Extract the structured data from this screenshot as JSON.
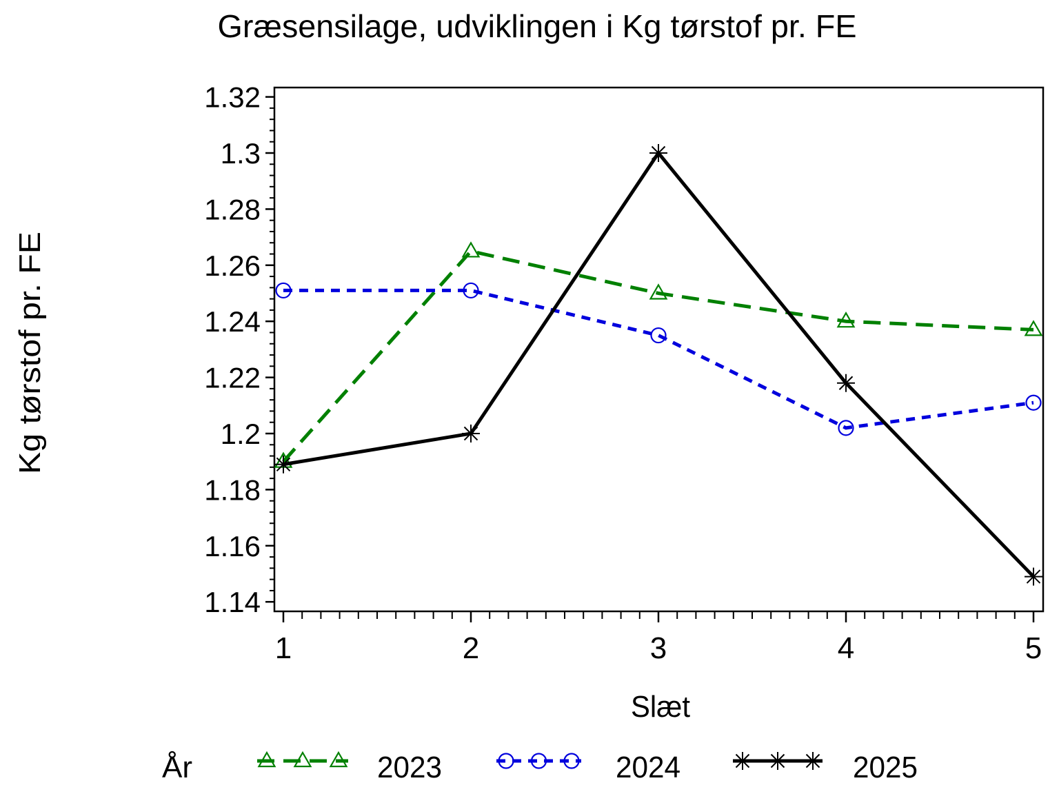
{
  "title": "Græsensilage, udviklingen i Kg tørstof pr. FE",
  "background_color": "#ffffff",
  "chart_data": {
    "type": "line",
    "title": "Græsensilage, udviklingen i Kg tørstof pr. FE",
    "xlabel": "Slæt",
    "ylabel": "Kg tørstof pr. FE",
    "x": [
      1,
      2,
      3,
      4,
      5
    ],
    "xtick_labels": [
      "1",
      "2",
      "3",
      "4",
      "5"
    ],
    "xlim": [
      1,
      5
    ],
    "ylim": [
      1.14,
      1.32
    ],
    "yticks": [
      1.14,
      1.16,
      1.18,
      1.2,
      1.22,
      1.24,
      1.26,
      1.28,
      1.3,
      1.32
    ],
    "ytick_labels": [
      "1.14",
      "1.16",
      "1.18",
      "1.2",
      "1.22",
      "1.24",
      "1.26",
      "1.28",
      "1.3",
      "1.32"
    ],
    "minor_ticks_per_interval": {
      "x": 9,
      "y": 4
    },
    "grid": false,
    "frame": true,
    "legend": {
      "title": "År",
      "position": "bottom"
    },
    "series": [
      {
        "name": "2023",
        "color": "#008000",
        "line_style": "dashed",
        "marker": "triangle-open",
        "values": [
          1.19,
          1.265,
          1.25,
          1.24,
          1.237
        ]
      },
      {
        "name": "2024",
        "color": "#0000dd",
        "line_style": "dashed",
        "marker": "circle-open",
        "values": [
          1.251,
          1.251,
          1.235,
          1.202,
          1.211
        ]
      },
      {
        "name": "2025",
        "color": "#000000",
        "line_style": "solid",
        "marker": "star",
        "values": [
          1.189,
          1.2,
          1.3,
          1.218,
          1.149
        ]
      }
    ]
  }
}
